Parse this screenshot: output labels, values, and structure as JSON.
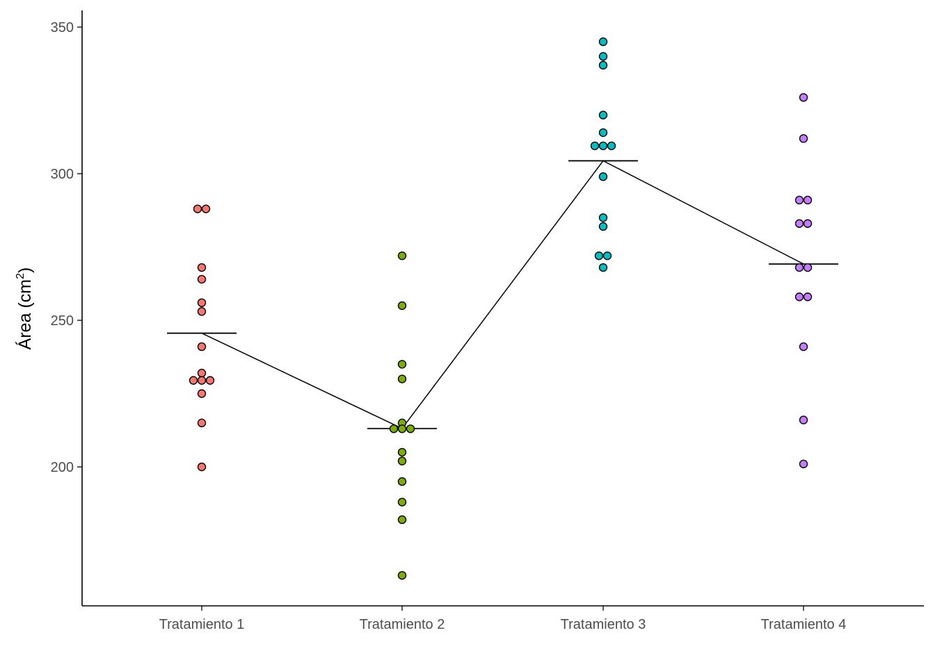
{
  "chart_data": {
    "type": "scatter",
    "title": "",
    "xlabel": "",
    "ylabel": "Área (cm²)",
    "ylabel_parts": {
      "main": "Área (cm",
      "sup": "2",
      "end": ")"
    },
    "ylim": [
      160,
      355
    ],
    "yticks": [
      200,
      250,
      300,
      350
    ],
    "grid": false,
    "legend": "none",
    "categories": [
      "Tratamiento 1",
      "Tratamiento 2",
      "Tratamiento 3",
      "Tratamiento 4"
    ],
    "colors": [
      "#F8766D",
      "#7CAE00",
      "#00BFC4",
      "#C77CFF"
    ],
    "series": [
      {
        "category": "Tratamiento 1",
        "points": [
          {
            "y": 288,
            "dx": -0.5
          },
          {
            "y": 288,
            "dx": 0.5
          },
          {
            "y": 268,
            "dx": 0
          },
          {
            "y": 264,
            "dx": 0
          },
          {
            "y": 256,
            "dx": 0
          },
          {
            "y": 253,
            "dx": 0
          },
          {
            "y": 241,
            "dx": 0
          },
          {
            "y": 232,
            "dx": 0
          },
          {
            "y": 229.5,
            "dx": -1
          },
          {
            "y": 229.5,
            "dx": 0
          },
          {
            "y": 229.5,
            "dx": 1
          },
          {
            "y": 225,
            "dx": 0
          },
          {
            "y": 215,
            "dx": 0
          },
          {
            "y": 200,
            "dx": 0
          }
        ],
        "mean": 245.6
      },
      {
        "category": "Tratamiento 2",
        "points": [
          {
            "y": 272,
            "dx": 0
          },
          {
            "y": 255,
            "dx": 0
          },
          {
            "y": 235,
            "dx": 0
          },
          {
            "y": 230,
            "dx": 0
          },
          {
            "y": 215,
            "dx": 0
          },
          {
            "y": 213,
            "dx": -1
          },
          {
            "y": 213,
            "dx": 0
          },
          {
            "y": 213,
            "dx": 1
          },
          {
            "y": 205,
            "dx": 0
          },
          {
            "y": 202,
            "dx": 0
          },
          {
            "y": 195,
            "dx": 0
          },
          {
            "y": 188,
            "dx": 0
          },
          {
            "y": 182,
            "dx": 0
          },
          {
            "y": 163,
            "dx": 0
          }
        ],
        "mean": 213.1
      },
      {
        "category": "Tratamiento 3",
        "points": [
          {
            "y": 345,
            "dx": 0
          },
          {
            "y": 340,
            "dx": 0
          },
          {
            "y": 337,
            "dx": 0
          },
          {
            "y": 320,
            "dx": 0
          },
          {
            "y": 314,
            "dx": 0
          },
          {
            "y": 309.5,
            "dx": -1
          },
          {
            "y": 309.5,
            "dx": 0
          },
          {
            "y": 309.5,
            "dx": 1
          },
          {
            "y": 299,
            "dx": 0
          },
          {
            "y": 285,
            "dx": 0
          },
          {
            "y": 282,
            "dx": 0
          },
          {
            "y": 272,
            "dx": -0.5
          },
          {
            "y": 272,
            "dx": 0.5
          },
          {
            "y": 268,
            "dx": 0
          }
        ],
        "mean": 304.4
      },
      {
        "category": "Tratamiento 4",
        "points": [
          {
            "y": 326,
            "dx": 0
          },
          {
            "y": 312,
            "dx": 0
          },
          {
            "y": 291,
            "dx": -0.5
          },
          {
            "y": 291,
            "dx": 0.5
          },
          {
            "y": 283,
            "dx": -0.5
          },
          {
            "y": 283,
            "dx": 0.5
          },
          {
            "y": 268,
            "dx": -0.5
          },
          {
            "y": 268,
            "dx": 0.5
          },
          {
            "y": 258,
            "dx": -0.5
          },
          {
            "y": 258,
            "dx": 0.5
          },
          {
            "y": 241,
            "dx": 0
          },
          {
            "y": 216,
            "dx": 0
          },
          {
            "y": 201,
            "dx": 0
          }
        ],
        "mean": 269.2
      }
    ]
  }
}
